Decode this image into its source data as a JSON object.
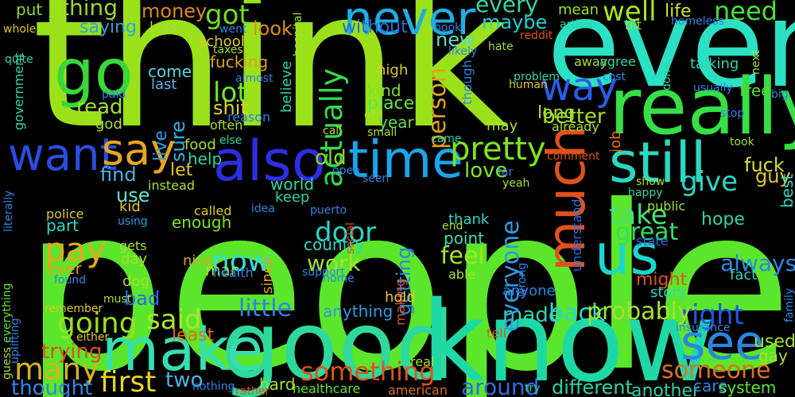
{
  "words": [
    {
      "t": "people",
      "c": "#5ce62b"
    },
    {
      "t": "think",
      "c": "#9be11a"
    },
    {
      "t": "even",
      "c": "#2be0c3"
    },
    {
      "t": "good",
      "c": "#2fd99c"
    },
    {
      "t": "know",
      "c": "#1ed9a6"
    },
    {
      "t": "really",
      "c": "#35df45"
    },
    {
      "t": "go",
      "c": "#3ad63a"
    },
    {
      "t": "never",
      "c": "#1eaee6"
    },
    {
      "t": "make",
      "c": "#34e0b0"
    },
    {
      "t": "also",
      "c": "#2d2ee0"
    },
    {
      "t": "time",
      "c": "#1aa6ee"
    },
    {
      "t": "still",
      "c": "#2ad8c0"
    },
    {
      "t": "much",
      "c": "#e0511a"
    },
    {
      "t": "us",
      "c": "#1ad7ce"
    },
    {
      "t": "want",
      "c": "#2a4de0"
    },
    {
      "t": "say",
      "c": "#e6a61f"
    },
    {
      "t": "see",
      "c": "#2a86e0"
    },
    {
      "t": "way",
      "c": "#2b5ce6"
    },
    {
      "t": "pretty",
      "c": "#7ce61a"
    },
    {
      "t": "got",
      "c": "#6fe017"
    },
    {
      "t": "well",
      "c": "#a6e61a"
    },
    {
      "t": "need",
      "c": "#48e03a"
    },
    {
      "t": "actually",
      "c": "#34d84c"
    },
    {
      "t": "every",
      "c": "#31d6a6"
    },
    {
      "t": "thing",
      "c": "#9ad92c"
    },
    {
      "t": "money",
      "c": "#d88a1e"
    },
    {
      "t": "saying",
      "c": "#2aa6d6"
    },
    {
      "t": "put",
      "c": "#8fd63a"
    },
    {
      "t": "lot",
      "c": "#6fe62b"
    },
    {
      "t": "shit",
      "c": "#e0d61e"
    },
    {
      "t": "read",
      "c": "#9be12b"
    },
    {
      "t": "look",
      "c": "#e08a1a"
    },
    {
      "t": "new",
      "c": "#5fd8c0"
    },
    {
      "t": "without",
      "c": "#1e6ed8"
    },
    {
      "t": "maybe",
      "c": "#1ad0d6"
    },
    {
      "t": "mean",
      "c": "#9be11a"
    },
    {
      "t": "life",
      "c": "#d6e02c"
    },
    {
      "t": "person",
      "c": "#e0a21a"
    },
    {
      "t": "better",
      "c": "#a6e11a"
    },
    {
      "t": "kind",
      "c": "#7ce022"
    },
    {
      "t": "place",
      "c": "#5ee641"
    },
    {
      "t": "long",
      "c": "#a6e02c"
    },
    {
      "t": "year",
      "c": "#62d84a"
    },
    {
      "t": "free",
      "c": "#58d82e"
    },
    {
      "t": "take",
      "c": "#46e07a"
    },
    {
      "t": "give",
      "c": "#2ad6c6"
    },
    {
      "t": "great",
      "c": "#2ee068"
    },
    {
      "t": "right",
      "c": "#1e5ae6"
    },
    {
      "t": "always",
      "c": "#2a8ae6"
    },
    {
      "t": "fuck",
      "c": "#d6e02c"
    },
    {
      "t": "guy",
      "c": "#e0c81e"
    },
    {
      "t": "love",
      "c": "#80e61a"
    },
    {
      "t": "old",
      "c": "#8ad61e"
    },
    {
      "t": "find",
      "c": "#4ab4e6"
    },
    {
      "t": "use",
      "c": "#5ee6d6"
    },
    {
      "t": "let",
      "c": "#e0c81e"
    },
    {
      "t": "help",
      "c": "#2ad6a6"
    },
    {
      "t": "food",
      "c": "#a6e02a"
    },
    {
      "t": "sure",
      "c": "#2ab4e6"
    },
    {
      "t": "live",
      "c": "#2a9ce6"
    },
    {
      "t": "come",
      "c": "#50d8e0"
    },
    {
      "t": "last",
      "c": "#5ab4e6"
    },
    {
      "t": "pay",
      "c": "#e6a61e"
    },
    {
      "t": "now",
      "c": "#2ee0d6"
    },
    {
      "t": "said",
      "c": "#a6e62b"
    },
    {
      "t": "going",
      "c": "#9be11a"
    },
    {
      "t": "many",
      "c": "#d6b41e"
    },
    {
      "t": "first",
      "c": "#e6d61e"
    },
    {
      "t": "two",
      "c": "#4ab4e6"
    },
    {
      "t": "little",
      "c": "#2a86e6"
    },
    {
      "t": "made",
      "c": "#2ad6b4"
    },
    {
      "t": "back",
      "c": "#2ad8c6"
    },
    {
      "t": "probably",
      "c": "#a6e02c"
    },
    {
      "t": "something",
      "c": "#e0511a"
    },
    {
      "t": "someone",
      "c": "#e0701a"
    },
    {
      "t": "feel",
      "c": "#a6e61a"
    },
    {
      "t": "work",
      "c": "#a6e02c"
    },
    {
      "t": "door",
      "c": "#2ad6c6"
    },
    {
      "t": "point",
      "c": "#34e0b0"
    },
    {
      "t": "country",
      "c": "#2ad6c6"
    },
    {
      "t": "everyone",
      "c": "#2a9ce6"
    },
    {
      "t": "getting",
      "c": "#2a86e6"
    },
    {
      "t": "world",
      "c": "#2ad8a6"
    },
    {
      "t": "keep",
      "c": "#2ad6a6"
    },
    {
      "t": "enough",
      "c": "#7ce61a"
    },
    {
      "t": "part",
      "c": "#2ad6c6"
    },
    {
      "t": "police",
      "c": "#e0c81e"
    },
    {
      "t": "kid",
      "c": "#e0c81e"
    },
    {
      "t": "day",
      "c": "#a6e02a"
    },
    {
      "t": "dog",
      "c": "#a6e02a"
    },
    {
      "t": "bad",
      "c": "#2a6ee6"
    },
    {
      "t": "ever",
      "c": "#e0a21a"
    },
    {
      "t": "trying",
      "c": "#e0511a"
    },
    {
      "t": "least",
      "c": "#e0701a"
    },
    {
      "t": "thought",
      "c": "#2a86e6"
    },
    {
      "t": "hard",
      "c": "#a6e02a"
    },
    {
      "t": "around",
      "c": "#2a6ee6"
    },
    {
      "t": "different",
      "c": "#2ad6a6"
    },
    {
      "t": "another",
      "c": "#2ad6a6"
    },
    {
      "t": "anyone",
      "c": "#2a86e6"
    },
    {
      "t": "anything",
      "c": "#2a9ce6"
    },
    {
      "t": "used",
      "c": "#a6e61a"
    },
    {
      "t": "gay",
      "c": "#a6e02a"
    },
    {
      "t": "hope",
      "c": "#2ad6a6"
    },
    {
      "t": "fact",
      "c": "#2ad6c6"
    },
    {
      "t": "might",
      "c": "#e0511a"
    },
    {
      "t": "story",
      "c": "#2ad6c6"
    },
    {
      "t": "care",
      "c": "#2a86e6"
    },
    {
      "t": "system",
      "c": "#5ce62b"
    },
    {
      "t": "tell",
      "c": "#e0511a"
    },
    {
      "t": "healthcare",
      "c": "#5ce62b"
    },
    {
      "t": "american",
      "c": "#e0701a"
    },
    {
      "t": "man",
      "c": "#a6e02a"
    },
    {
      "t": "nice",
      "c": "#e0a21a"
    },
    {
      "t": "health",
      "c": "#2a86e6"
    },
    {
      "t": "since",
      "c": "#e0a21a"
    },
    {
      "t": "making",
      "c": "#e0511a"
    },
    {
      "t": "understand",
      "c": "#2a6ee6"
    },
    {
      "t": "thank",
      "c": "#2ad6c6"
    },
    {
      "t": "best",
      "c": "#2ad6c6"
    },
    {
      "t": "public",
      "c": "#a6e02a"
    },
    {
      "t": "state",
      "c": "#2a6ee6"
    },
    {
      "t": "show",
      "c": "#a6e02a"
    },
    {
      "t": "happy",
      "c": "#2ad6a6"
    },
    {
      "t": "called",
      "c": "#e0c81e"
    },
    {
      "t": "idea",
      "c": "#2a86e6"
    },
    {
      "t": "using",
      "c": "#2a9ce6"
    },
    {
      "t": "gets",
      "c": "#a6e02a"
    },
    {
      "t": "instead",
      "c": "#a6e02a"
    },
    {
      "t": "literally",
      "c": "#2a86e6"
    },
    {
      "t": "government",
      "c": "#2ad6a6"
    },
    {
      "t": "whole",
      "c": "#e0c81e"
    },
    {
      "t": "quite",
      "c": "#2ad6a6"
    },
    {
      "t": "paid",
      "c": "#2a86e6"
    },
    {
      "t": "school",
      "c": "#e0c81e"
    },
    {
      "t": "taxes",
      "c": "#a6e02a"
    },
    {
      "t": "went",
      "c": "#2a86e6"
    },
    {
      "t": "less",
      "c": "#a6e02a"
    },
    {
      "t": "fucking",
      "c": "#e0a21a"
    },
    {
      "t": "reason",
      "c": "#2a86e6"
    },
    {
      "t": "often",
      "c": "#a6e02a"
    },
    {
      "t": "almost",
      "c": "#2a86e6"
    },
    {
      "t": "believe",
      "c": "#2ad6a6"
    },
    {
      "t": "hospital",
      "c": "#a6e02a"
    },
    {
      "t": "god",
      "c": "#a6e02a"
    },
    {
      "t": "else",
      "c": "#2ad6a6"
    },
    {
      "t": "call",
      "c": "#a6e02a"
    },
    {
      "t": "oh",
      "c": "#a6e02a"
    },
    {
      "t": "small",
      "c": "#a6e02a"
    },
    {
      "t": "came",
      "c": "#2ad6a6"
    },
    {
      "t": "seen",
      "c": "#2a86e6"
    },
    {
      "t": "open",
      "c": "#2a86e6"
    },
    {
      "t": "far",
      "c": "#2a86e6"
    },
    {
      "t": "yeah",
      "c": "#a6e02a"
    },
    {
      "t": "comment",
      "c": "#e0511a"
    },
    {
      "t": "took",
      "c": "#a6e02a"
    },
    {
      "t": "stop",
      "c": "#2a86e6"
    },
    {
      "t": "job",
      "c": "#e0701a"
    },
    {
      "t": "usually",
      "c": "#2a86e6"
    },
    {
      "t": "done",
      "c": "#2ad6a6"
    },
    {
      "t": "human",
      "c": "#e0c81e"
    },
    {
      "t": "problem",
      "c": "#2ad6a6"
    },
    {
      "t": "already",
      "c": "#a6e02a"
    },
    {
      "t": "high",
      "c": "#e0c81e"
    },
    {
      "t": "likely",
      "c": "#2a86e6"
    },
    {
      "t": "though",
      "c": "#2a86e6"
    },
    {
      "t": "book",
      "c": "#2a86e6"
    },
    {
      "t": "reddit",
      "c": "#e0511a"
    },
    {
      "t": "hate",
      "c": "#a6e02a"
    },
    {
      "t": "away",
      "c": "#a6e02a"
    },
    {
      "t": "agree",
      "c": "#2ad6a6"
    },
    {
      "t": "cost",
      "c": "#2a86e6"
    },
    {
      "t": "talking",
      "c": "#2ad6a6"
    },
    {
      "t": "homeless",
      "c": "#2a86e6"
    },
    {
      "t": "article",
      "c": "#2ad6a6"
    },
    {
      "t": "bit",
      "c": "#a6e02a"
    },
    {
      "t": "next",
      "c": "#a6e02a"
    },
    {
      "t": "big",
      "c": "#2a86e6"
    },
    {
      "t": "may",
      "c": "#a6e02a"
    },
    {
      "t": "puerto",
      "c": "#2a86e6"
    },
    {
      "t": "social",
      "c": "#e0511a"
    },
    {
      "t": "support",
      "c": "#2a86e6"
    },
    {
      "t": "end",
      "c": "#a6e02a"
    },
    {
      "t": "able",
      "c": "#a6e02a"
    },
    {
      "t": "home",
      "c": "#2a86e6"
    },
    {
      "t": "wrong",
      "c": "#2a86e6"
    },
    {
      "t": "insurance",
      "c": "#2a86e6"
    },
    {
      "t": "family",
      "c": "#2a86e6"
    },
    {
      "t": "found",
      "c": "#2a86e6"
    },
    {
      "t": "everything",
      "c": "#5ce62b"
    },
    {
      "t": "uplifting",
      "c": "#2a86e6"
    },
    {
      "t": "guess",
      "c": "#a6e02a"
    },
    {
      "t": "remember",
      "c": "#e0c81e"
    },
    {
      "t": "must",
      "c": "#a6e02a"
    },
    {
      "t": "either",
      "c": "#e0c81e"
    },
    {
      "t": "nothing",
      "c": "#2a86e6"
    },
    {
      "t": "rather",
      "c": "#e0511a"
    },
    {
      "t": "real",
      "c": "#a6e02a"
    },
    {
      "t": "try",
      "c": "#2ad6a6"
    },
    {
      "t": "hold",
      "c": "#e0c81e"
    }
  ]
}
